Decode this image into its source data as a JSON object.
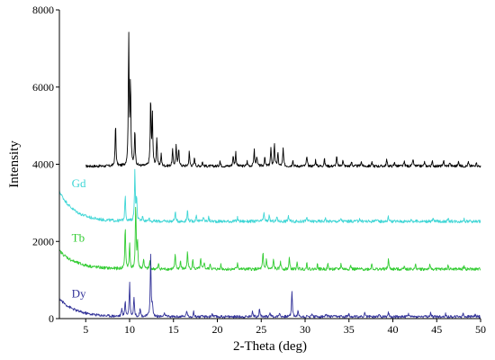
{
  "chart_data": {
    "type": "line",
    "title": "",
    "xlabel": "2-Theta (deg)",
    "ylabel": "Intensity",
    "xlim": [
      2,
      50
    ],
    "ylim": [
      0,
      8000
    ],
    "x_ticks": [
      5,
      10,
      15,
      20,
      25,
      30,
      35,
      40,
      45,
      50
    ],
    "y_ticks": [
      0,
      2000,
      4000,
      6000,
      8000
    ],
    "grid": false,
    "legend": "inline",
    "series": [
      {
        "name": "",
        "color": "#000000",
        "x_start": 5,
        "x_end": 50,
        "baseline": 3950,
        "noise": 35,
        "peaks": [
          [
            8.4,
            1100
          ],
          [
            9.9,
            3300
          ],
          [
            10.1,
            2150
          ],
          [
            10.6,
            950
          ],
          [
            12.4,
            1750
          ],
          [
            12.6,
            1300
          ],
          [
            13.1,
            720
          ],
          [
            13.6,
            300
          ],
          [
            14.9,
            420
          ],
          [
            15.3,
            540
          ],
          [
            15.6,
            480
          ],
          [
            16.8,
            380
          ],
          [
            17.4,
            220
          ],
          [
            18.3,
            120
          ],
          [
            20.3,
            140
          ],
          [
            21.8,
            280
          ],
          [
            22.1,
            360
          ],
          [
            23.4,
            130
          ],
          [
            24.2,
            440
          ],
          [
            24.5,
            270
          ],
          [
            25.4,
            240
          ],
          [
            26.1,
            460
          ],
          [
            26.5,
            600
          ],
          [
            26.9,
            330
          ],
          [
            27.5,
            460
          ],
          [
            28.6,
            170
          ],
          [
            30.2,
            270
          ],
          [
            31.2,
            170
          ],
          [
            32.2,
            200
          ],
          [
            33.6,
            260
          ],
          [
            34.3,
            170
          ],
          [
            35.3,
            120
          ],
          [
            36.4,
            140
          ],
          [
            37.6,
            110
          ],
          [
            39.3,
            170
          ],
          [
            40.2,
            110
          ],
          [
            41.3,
            120
          ],
          [
            42.3,
            190
          ],
          [
            43.6,
            110
          ],
          [
            44.5,
            120
          ],
          [
            45.8,
            140
          ],
          [
            46.5,
            110
          ],
          [
            47.5,
            140
          ],
          [
            48.6,
            110
          ],
          [
            49.5,
            120
          ]
        ]
      },
      {
        "name": "Gd",
        "color": "#3fd6d6",
        "x_start": 2,
        "x_end": 50,
        "baseline": 2520,
        "decay_amp": 780,
        "decay_rate": 0.58,
        "noise": 40,
        "peaks": [
          [
            9.5,
            700
          ],
          [
            10.6,
            1340
          ],
          [
            10.8,
            600
          ],
          [
            11.5,
            150
          ],
          [
            12.2,
            120
          ],
          [
            15.2,
            270
          ],
          [
            16.6,
            300
          ],
          [
            17.6,
            180
          ],
          [
            18.4,
            130
          ],
          [
            19.0,
            110
          ],
          [
            22.3,
            100
          ],
          [
            25.3,
            240
          ],
          [
            25.9,
            140
          ],
          [
            26.8,
            120
          ],
          [
            28.1,
            150
          ],
          [
            30.2,
            110
          ],
          [
            32.3,
            90
          ],
          [
            34.1,
            80
          ],
          [
            36.2,
            80
          ],
          [
            38.0,
            70
          ],
          [
            39.5,
            130
          ],
          [
            42.1,
            70
          ],
          [
            44.6,
            70
          ],
          [
            46.3,
            60
          ],
          [
            48.1,
            60
          ]
        ]
      },
      {
        "name": "Tb",
        "color": "#33cc33",
        "x_start": 2,
        "x_end": 50,
        "baseline": 1280,
        "decay_amp": 480,
        "decay_rate": 0.52,
        "noise": 40,
        "peaks": [
          [
            9.5,
            1100
          ],
          [
            10.0,
            650
          ],
          [
            10.7,
            1650
          ],
          [
            10.9,
            700
          ],
          [
            11.6,
            280
          ],
          [
            12.3,
            200
          ],
          [
            13.3,
            130
          ],
          [
            15.2,
            380
          ],
          [
            15.8,
            220
          ],
          [
            16.6,
            480
          ],
          [
            17.2,
            250
          ],
          [
            18.1,
            260
          ],
          [
            18.5,
            200
          ],
          [
            19.2,
            150
          ],
          [
            20.4,
            120
          ],
          [
            22.3,
            180
          ],
          [
            25.2,
            430
          ],
          [
            25.6,
            280
          ],
          [
            26.4,
            260
          ],
          [
            27.2,
            220
          ],
          [
            28.2,
            300
          ],
          [
            29.1,
            160
          ],
          [
            30.2,
            170
          ],
          [
            31.4,
            130
          ],
          [
            32.6,
            130
          ],
          [
            34.1,
            150
          ],
          [
            35.2,
            110
          ],
          [
            37.6,
            150
          ],
          [
            39.5,
            270
          ],
          [
            41.3,
            110
          ],
          [
            42.6,
            120
          ],
          [
            44.2,
            100
          ],
          [
            46.3,
            100
          ],
          [
            48.1,
            90
          ]
        ]
      },
      {
        "name": "Dy",
        "color": "#333399",
        "x_start": 2,
        "x_end": 50,
        "baseline": 50,
        "decay_amp": 470,
        "decay_rate": 0.55,
        "noise": 35,
        "peaks": [
          [
            9.1,
            200
          ],
          [
            9.5,
            420
          ],
          [
            10.0,
            900
          ],
          [
            10.5,
            520
          ],
          [
            11.2,
            250
          ],
          [
            12.4,
            1620
          ],
          [
            12.6,
            300
          ],
          [
            14.0,
            100
          ],
          [
            16.5,
            170
          ],
          [
            17.3,
            120
          ],
          [
            19.4,
            80
          ],
          [
            24.0,
            170
          ],
          [
            24.8,
            200
          ],
          [
            26.0,
            140
          ],
          [
            27.1,
            110
          ],
          [
            28.5,
            680
          ],
          [
            29.2,
            150
          ],
          [
            30.8,
            90
          ],
          [
            32.4,
            80
          ],
          [
            35.0,
            110
          ],
          [
            36.8,
            90
          ],
          [
            38.4,
            80
          ],
          [
            39.5,
            120
          ],
          [
            41.8,
            80
          ],
          [
            44.3,
            90
          ],
          [
            46.0,
            70
          ],
          [
            48.0,
            90
          ],
          [
            49.4,
            70
          ]
        ]
      }
    ]
  }
}
